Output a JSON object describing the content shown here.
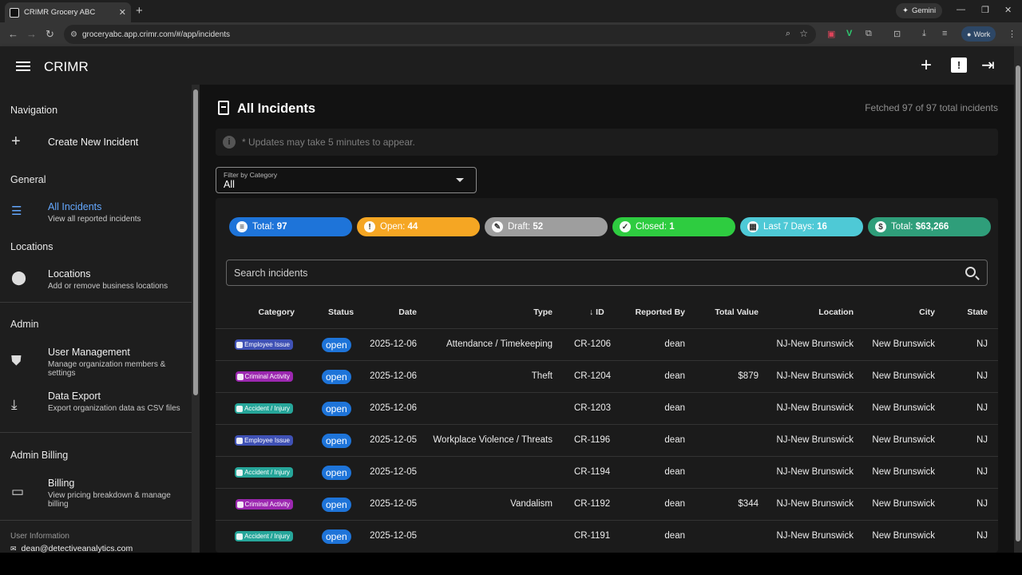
{
  "browser": {
    "tab_title": "CRIMR Grocery ABC",
    "url": "groceryabc.app.crimr.com/#/app/incidents",
    "gemini_label": "Gemini",
    "profile_label": "Work"
  },
  "appbar": {
    "title": "CRIMR"
  },
  "sidebar": {
    "navigation_heading": "Navigation",
    "create_label": "Create New Incident",
    "general_heading": "General",
    "all_incidents_label": "All Incidents",
    "all_incidents_sub": "View all reported incidents",
    "locations_heading": "Locations",
    "locations_label": "Locations",
    "locations_sub": "Add or remove business locations",
    "admin_heading": "Admin",
    "user_mgmt_label": "User Management",
    "user_mgmt_sub": "Manage organization members & settings",
    "export_label": "Data Export",
    "export_sub": "Export organization data as CSV files",
    "billing_heading": "Admin Billing",
    "billing_label": "Billing",
    "billing_sub": "View pricing breakdown & manage billing",
    "user_info_heading": "User Information",
    "user_email": "dean@detectiveanalytics.com"
  },
  "main": {
    "title": "All Incidents",
    "fetched": "Fetched 97 of 97 total incidents",
    "notice": "* Updates may take 5 minutes to appear.",
    "filter_label": "Filter by Category",
    "filter_value": "All",
    "search_placeholder": "Search incidents"
  },
  "chips": [
    {
      "label": "Total:",
      "value": "97",
      "color": "#1e74d9"
    },
    {
      "label": "Open:",
      "value": "44",
      "color": "#f5a623"
    },
    {
      "label": "Draft:",
      "value": "52",
      "color": "#9e9e9e"
    },
    {
      "label": "Closed:",
      "value": "1",
      "color": "#2ecc40"
    },
    {
      "label": "Last 7 Days:",
      "value": "16",
      "color": "#4ec9d6"
    },
    {
      "label": "Total:",
      "value": "$63,266",
      "color": "#2f9e7a"
    }
  ],
  "table": {
    "headers": [
      "Category",
      "Status",
      "Date",
      "Type",
      "ID",
      "Reported By",
      "Total Value",
      "Location",
      "City",
      "State"
    ],
    "rows": [
      {
        "category": "Employee Issue",
        "cat_color": "#3f51b5",
        "status": "open",
        "date": "2025-12-06",
        "type": "Attendance / Timekeeping",
        "id": "CR-1206",
        "by": "dean",
        "value": "",
        "location": "NJ-New Brunswick",
        "city": "New Brunswick",
        "state": "NJ"
      },
      {
        "category": "Criminal Activity",
        "cat_color": "#9c27b0",
        "status": "open",
        "date": "2025-12-06",
        "type": "Theft",
        "id": "CR-1204",
        "by": "dean",
        "value": "$879",
        "location": "NJ-New Brunswick",
        "city": "New Brunswick",
        "state": "NJ"
      },
      {
        "category": "Accident / Injury",
        "cat_color": "#26a69a",
        "status": "open",
        "date": "2025-12-06",
        "type": "",
        "id": "CR-1203",
        "by": "dean",
        "value": "",
        "location": "NJ-New Brunswick",
        "city": "New Brunswick",
        "state": "NJ"
      },
      {
        "category": "Employee Issue",
        "cat_color": "#3f51b5",
        "status": "open",
        "date": "2025-12-05",
        "type": "Workplace Violence / Threats",
        "id": "CR-1196",
        "by": "dean",
        "value": "",
        "location": "NJ-New Brunswick",
        "city": "New Brunswick",
        "state": "NJ"
      },
      {
        "category": "Accident / Injury",
        "cat_color": "#26a69a",
        "status": "open",
        "date": "2025-12-05",
        "type": "",
        "id": "CR-1194",
        "by": "dean",
        "value": "",
        "location": "NJ-New Brunswick",
        "city": "New Brunswick",
        "state": "NJ"
      },
      {
        "category": "Criminal Activity",
        "cat_color": "#9c27b0",
        "status": "open",
        "date": "2025-12-05",
        "type": "Vandalism",
        "id": "CR-1192",
        "by": "dean",
        "value": "$344",
        "location": "NJ-New Brunswick",
        "city": "New Brunswick",
        "state": "NJ"
      },
      {
        "category": "Accident / Injury",
        "cat_color": "#26a69a",
        "status": "open",
        "date": "2025-12-05",
        "type": "",
        "id": "CR-1191",
        "by": "dean",
        "value": "",
        "location": "NJ-New Brunswick",
        "city": "New Brunswick",
        "state": "NJ"
      }
    ]
  }
}
